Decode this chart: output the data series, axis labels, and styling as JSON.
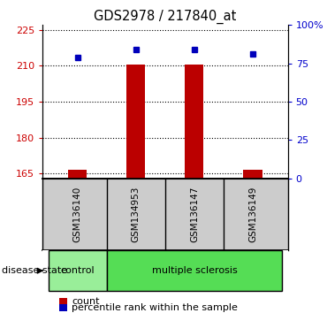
{
  "title": "GDS2978 / 217840_at",
  "samples": [
    "GSM136140",
    "GSM134953",
    "GSM136147",
    "GSM136149"
  ],
  "bar_values": [
    166.5,
    210.5,
    210.5,
    166.5
  ],
  "percentile_values": [
    79,
    84,
    84,
    81
  ],
  "ylim_left": [
    163,
    227
  ],
  "ylim_right": [
    0,
    100
  ],
  "yticks_left": [
    165,
    180,
    195,
    210,
    225
  ],
  "yticks_right": [
    0,
    25,
    50,
    75,
    100
  ],
  "ytick_labels_left": [
    "165",
    "180",
    "195",
    "210",
    "225"
  ],
  "ytick_labels_right": [
    "0",
    "25",
    "50",
    "75",
    "100%"
  ],
  "bar_color": "#bb0000",
  "dot_color": "#0000bb",
  "bar_bottom": 163,
  "label_color_left": "#cc0000",
  "label_color_right": "#0000cc",
  "disease_state_label": "disease state",
  "legend_count_label": "count",
  "legend_percentile_label": "percentile rank within the sample",
  "bg_color": "#ffffff",
  "plot_bg_color": "#ffffff",
  "sample_box_color": "#cccccc",
  "control_color": "#99ee99",
  "ms_color": "#55dd55",
  "group_data": [
    {
      "label": "control",
      "xmin": -0.5,
      "xmax": 0.5,
      "color": "#99ee99"
    },
    {
      "label": "multiple sclerosis",
      "xmin": 0.5,
      "xmax": 3.5,
      "color": "#55dd55"
    }
  ]
}
